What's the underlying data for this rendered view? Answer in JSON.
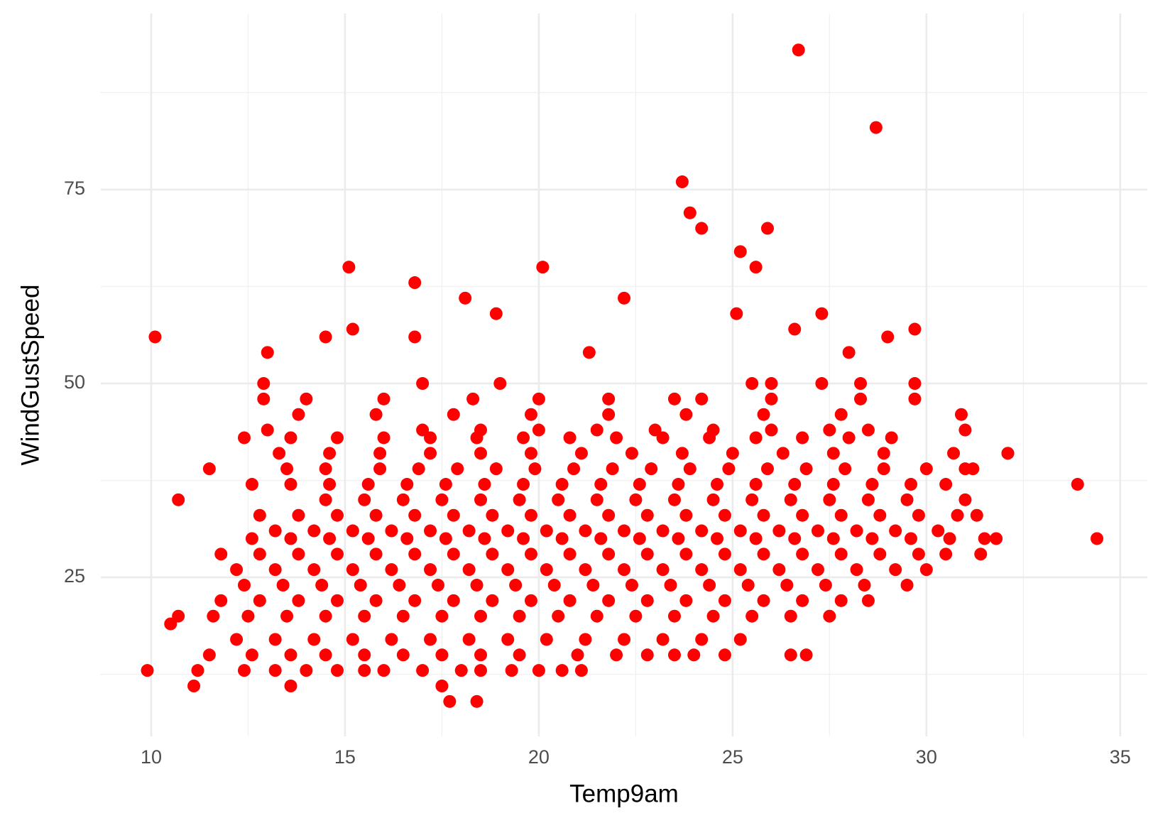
{
  "chart_data": {
    "type": "scatter",
    "x_label": "Temp9am",
    "y_label": "WindGustSpeed",
    "color": "#ff0000",
    "grid": true,
    "xlim": [
      8.7,
      35.7
    ],
    "ylim": [
      4.5,
      97.7
    ],
    "xticks": [
      10,
      15,
      20,
      25,
      30,
      35
    ],
    "yticks": [
      25,
      50,
      75
    ],
    "x_minor_ticks": [
      12.5,
      17.5,
      22.5,
      27.5,
      32.5
    ],
    "y_minor_ticks": [
      12.5,
      37.5,
      62.5,
      87.5
    ],
    "x": [
      9.9,
      11.2,
      12.4,
      13.2,
      14,
      14.8,
      15.5,
      16,
      17,
      18,
      18.5,
      19.3,
      20,
      20.6,
      21.1,
      11.5,
      12.6,
      13.6,
      14.5,
      15.5,
      16.5,
      17.5,
      18.5,
      19.5,
      21,
      22,
      22.8,
      23.5,
      24,
      24.8,
      26.5,
      26.9,
      12.2,
      13.2,
      14.2,
      15.2,
      16.2,
      17.2,
      18.2,
      19.2,
      20.2,
      21.2,
      22.2,
      23.2,
      24.2,
      25.2,
      11.6,
      12.5,
      13.5,
      14.5,
      15.5,
      16.5,
      17.5,
      18.5,
      19.5,
      20.5,
      21.5,
      22.5,
      23.5,
      24.5,
      25.5,
      26.5,
      27.5,
      11.8,
      12.8,
      13.8,
      14.8,
      15.8,
      16.8,
      17.8,
      18.8,
      19.8,
      20.8,
      21.8,
      22.8,
      23.8,
      24.8,
      25.8,
      26.8,
      27.8,
      28.5,
      12.4,
      13.4,
      14.4,
      15.4,
      16.4,
      17.4,
      18.4,
      19.4,
      20.4,
      21.4,
      22.4,
      23.4,
      24.4,
      25.4,
      26.4,
      27.4,
      28.4,
      29.5,
      12.2,
      13.2,
      14.2,
      15.2,
      16.2,
      17.2,
      18.2,
      19.2,
      20.2,
      21.2,
      22.2,
      23.2,
      24.2,
      25.2,
      26.2,
      27.2,
      28.2,
      29.2,
      30,
      11.8,
      12.8,
      13.8,
      14.8,
      15.8,
      16.8,
      17.8,
      18.8,
      19.8,
      20.8,
      21.8,
      22.8,
      23.8,
      24.8,
      25.8,
      26.8,
      27.8,
      28.8,
      29.8,
      30.5,
      31.4,
      12.6,
      13.6,
      14.6,
      15.6,
      16.6,
      17.6,
      18.6,
      19.6,
      20.6,
      21.6,
      22.6,
      23.6,
      24.6,
      25.6,
      26.6,
      27.6,
      28.6,
      29.6,
      30.6,
      31.5,
      13.2,
      14.2,
      15.2,
      16.2,
      17.2,
      18.2,
      19.2,
      20.2,
      21.2,
      22.2,
      23.2,
      24.2,
      25.2,
      26.2,
      27.2,
      28.2,
      29.2,
      30.3,
      12.8,
      13.8,
      14.8,
      15.8,
      16.8,
      17.8,
      18.8,
      19.8,
      20.8,
      21.8,
      22.8,
      23.8,
      24.8,
      25.8,
      26.8,
      27.8,
      28.8,
      29.8,
      30.8,
      31.3,
      10.7,
      14.5,
      15.5,
      16.5,
      17.5,
      18.5,
      19.5,
      20.5,
      21.5,
      22.5,
      23.5,
      24.5,
      25.5,
      26.5,
      27.5,
      28.5,
      29.5,
      31,
      12.6,
      13.6,
      14.6,
      15.6,
      16.6,
      17.6,
      18.6,
      19.6,
      20.6,
      21.6,
      22.6,
      23.6,
      24.6,
      25.6,
      26.6,
      27.6,
      28.6,
      29.6,
      30.5,
      33.9,
      11.5,
      13.5,
      14.5,
      15.9,
      16.9,
      17.9,
      18.9,
      19.9,
      20.9,
      21.9,
      22.9,
      23.9,
      24.9,
      25.9,
      26.9,
      27.9,
      28.9,
      30,
      31,
      31.2,
      13.3,
      14.6,
      15.9,
      17.2,
      18.5,
      19.8,
      21.1,
      22.4,
      23.7,
      25,
      26.3,
      27.6,
      28.9,
      30.7,
      32.1,
      12.4,
      13.6,
      14.8,
      16,
      17.2,
      18.4,
      19.6,
      20.8,
      22,
      23.2,
      24.4,
      25.6,
      26.8,
      28,
      29.1,
      13,
      17,
      18.5,
      20,
      21.5,
      23,
      24.5,
      26,
      27.5,
      28.5,
      31,
      13.8,
      15.8,
      17.8,
      19.8,
      21.8,
      23.8,
      25.8,
      27.8,
      30.9,
      12.9,
      14,
      16,
      18.3,
      20,
      21.8,
      23.5,
      24.2,
      26,
      28.3,
      29.7,
      12.9,
      17,
      19,
      25.5,
      26,
      27.3,
      28.3,
      29.7,
      10.1,
      10.5,
      10.7,
      11.1,
      13.6,
      17.5,
      17.7,
      18.4,
      15.1,
      20.1,
      16.8,
      18.1,
      22.2,
      18.9,
      25.1,
      27.3,
      15.2,
      16.8,
      14.5,
      29.7,
      26.6,
      29,
      13,
      21.3,
      28,
      23.7,
      23.9,
      24.2,
      25.9,
      25.2,
      25.6,
      26.7,
      28.7,
      34.4,
      32.1,
      31.8
    ],
    "values": [
      13,
      13,
      13,
      13,
      13,
      13,
      13,
      13,
      13,
      13,
      13,
      13,
      13,
      13,
      13,
      15,
      15,
      15,
      15,
      15,
      15,
      15,
      15,
      15,
      15,
      15,
      15,
      15,
      15,
      15,
      15,
      15,
      17,
      17,
      17,
      17,
      17,
      17,
      17,
      17,
      17,
      17,
      17,
      17,
      17,
      17,
      20,
      20,
      20,
      20,
      20,
      20,
      20,
      20,
      20,
      20,
      20,
      20,
      20,
      20,
      20,
      20,
      20,
      22,
      22,
      22,
      22,
      22,
      22,
      22,
      22,
      22,
      22,
      22,
      22,
      22,
      22,
      22,
      22,
      22,
      22,
      24,
      24,
      24,
      24,
      24,
      24,
      24,
      24,
      24,
      24,
      24,
      24,
      24,
      24,
      24,
      24,
      24,
      24,
      26,
      26,
      26,
      26,
      26,
      26,
      26,
      26,
      26,
      26,
      26,
      26,
      26,
      26,
      26,
      26,
      26,
      26,
      26,
      28,
      28,
      28,
      28,
      28,
      28,
      28,
      28,
      28,
      28,
      28,
      28,
      28,
      28,
      28,
      28,
      28,
      28,
      28,
      28,
      28,
      30,
      30,
      30,
      30,
      30,
      30,
      30,
      30,
      30,
      30,
      30,
      30,
      30,
      30,
      30,
      30,
      30,
      30,
      30,
      30,
      31,
      31,
      31,
      31,
      31,
      31,
      31,
      31,
      31,
      31,
      31,
      31,
      31,
      31,
      31,
      31,
      31,
      31,
      33,
      33,
      33,
      33,
      33,
      33,
      33,
      33,
      33,
      33,
      33,
      33,
      33,
      33,
      33,
      33,
      33,
      33,
      33,
      33,
      35,
      35,
      35,
      35,
      35,
      35,
      35,
      35,
      35,
      35,
      35,
      35,
      35,
      35,
      35,
      35,
      35,
      35,
      37,
      37,
      37,
      37,
      37,
      37,
      37,
      37,
      37,
      37,
      37,
      37,
      37,
      37,
      37,
      37,
      37,
      37,
      37,
      37,
      39,
      39,
      39,
      39,
      39,
      39,
      39,
      39,
      39,
      39,
      39,
      39,
      39,
      39,
      39,
      39,
      39,
      39,
      39,
      39,
      41,
      41,
      41,
      41,
      41,
      41,
      41,
      41,
      41,
      41,
      41,
      41,
      41,
      41,
      41,
      43,
      43,
      43,
      43,
      43,
      43,
      43,
      43,
      43,
      43,
      43,
      43,
      43,
      43,
      43,
      44,
      44,
      44,
      44,
      44,
      44,
      44,
      44,
      44,
      44,
      44,
      46,
      46,
      46,
      46,
      46,
      46,
      46,
      46,
      46,
      48,
      48,
      48,
      48,
      48,
      48,
      48,
      48,
      48,
      48,
      48,
      50,
      50,
      50,
      50,
      50,
      50,
      50,
      50,
      56,
      19,
      20,
      11,
      11,
      11,
      9,
      9,
      65,
      65,
      63,
      61,
      61,
      59,
      59,
      59,
      57,
      56,
      56,
      57,
      57,
      56,
      54,
      54,
      54,
      76,
      72,
      70,
      70,
      67,
      65,
      93,
      83,
      30,
      41,
      30
    ]
  }
}
